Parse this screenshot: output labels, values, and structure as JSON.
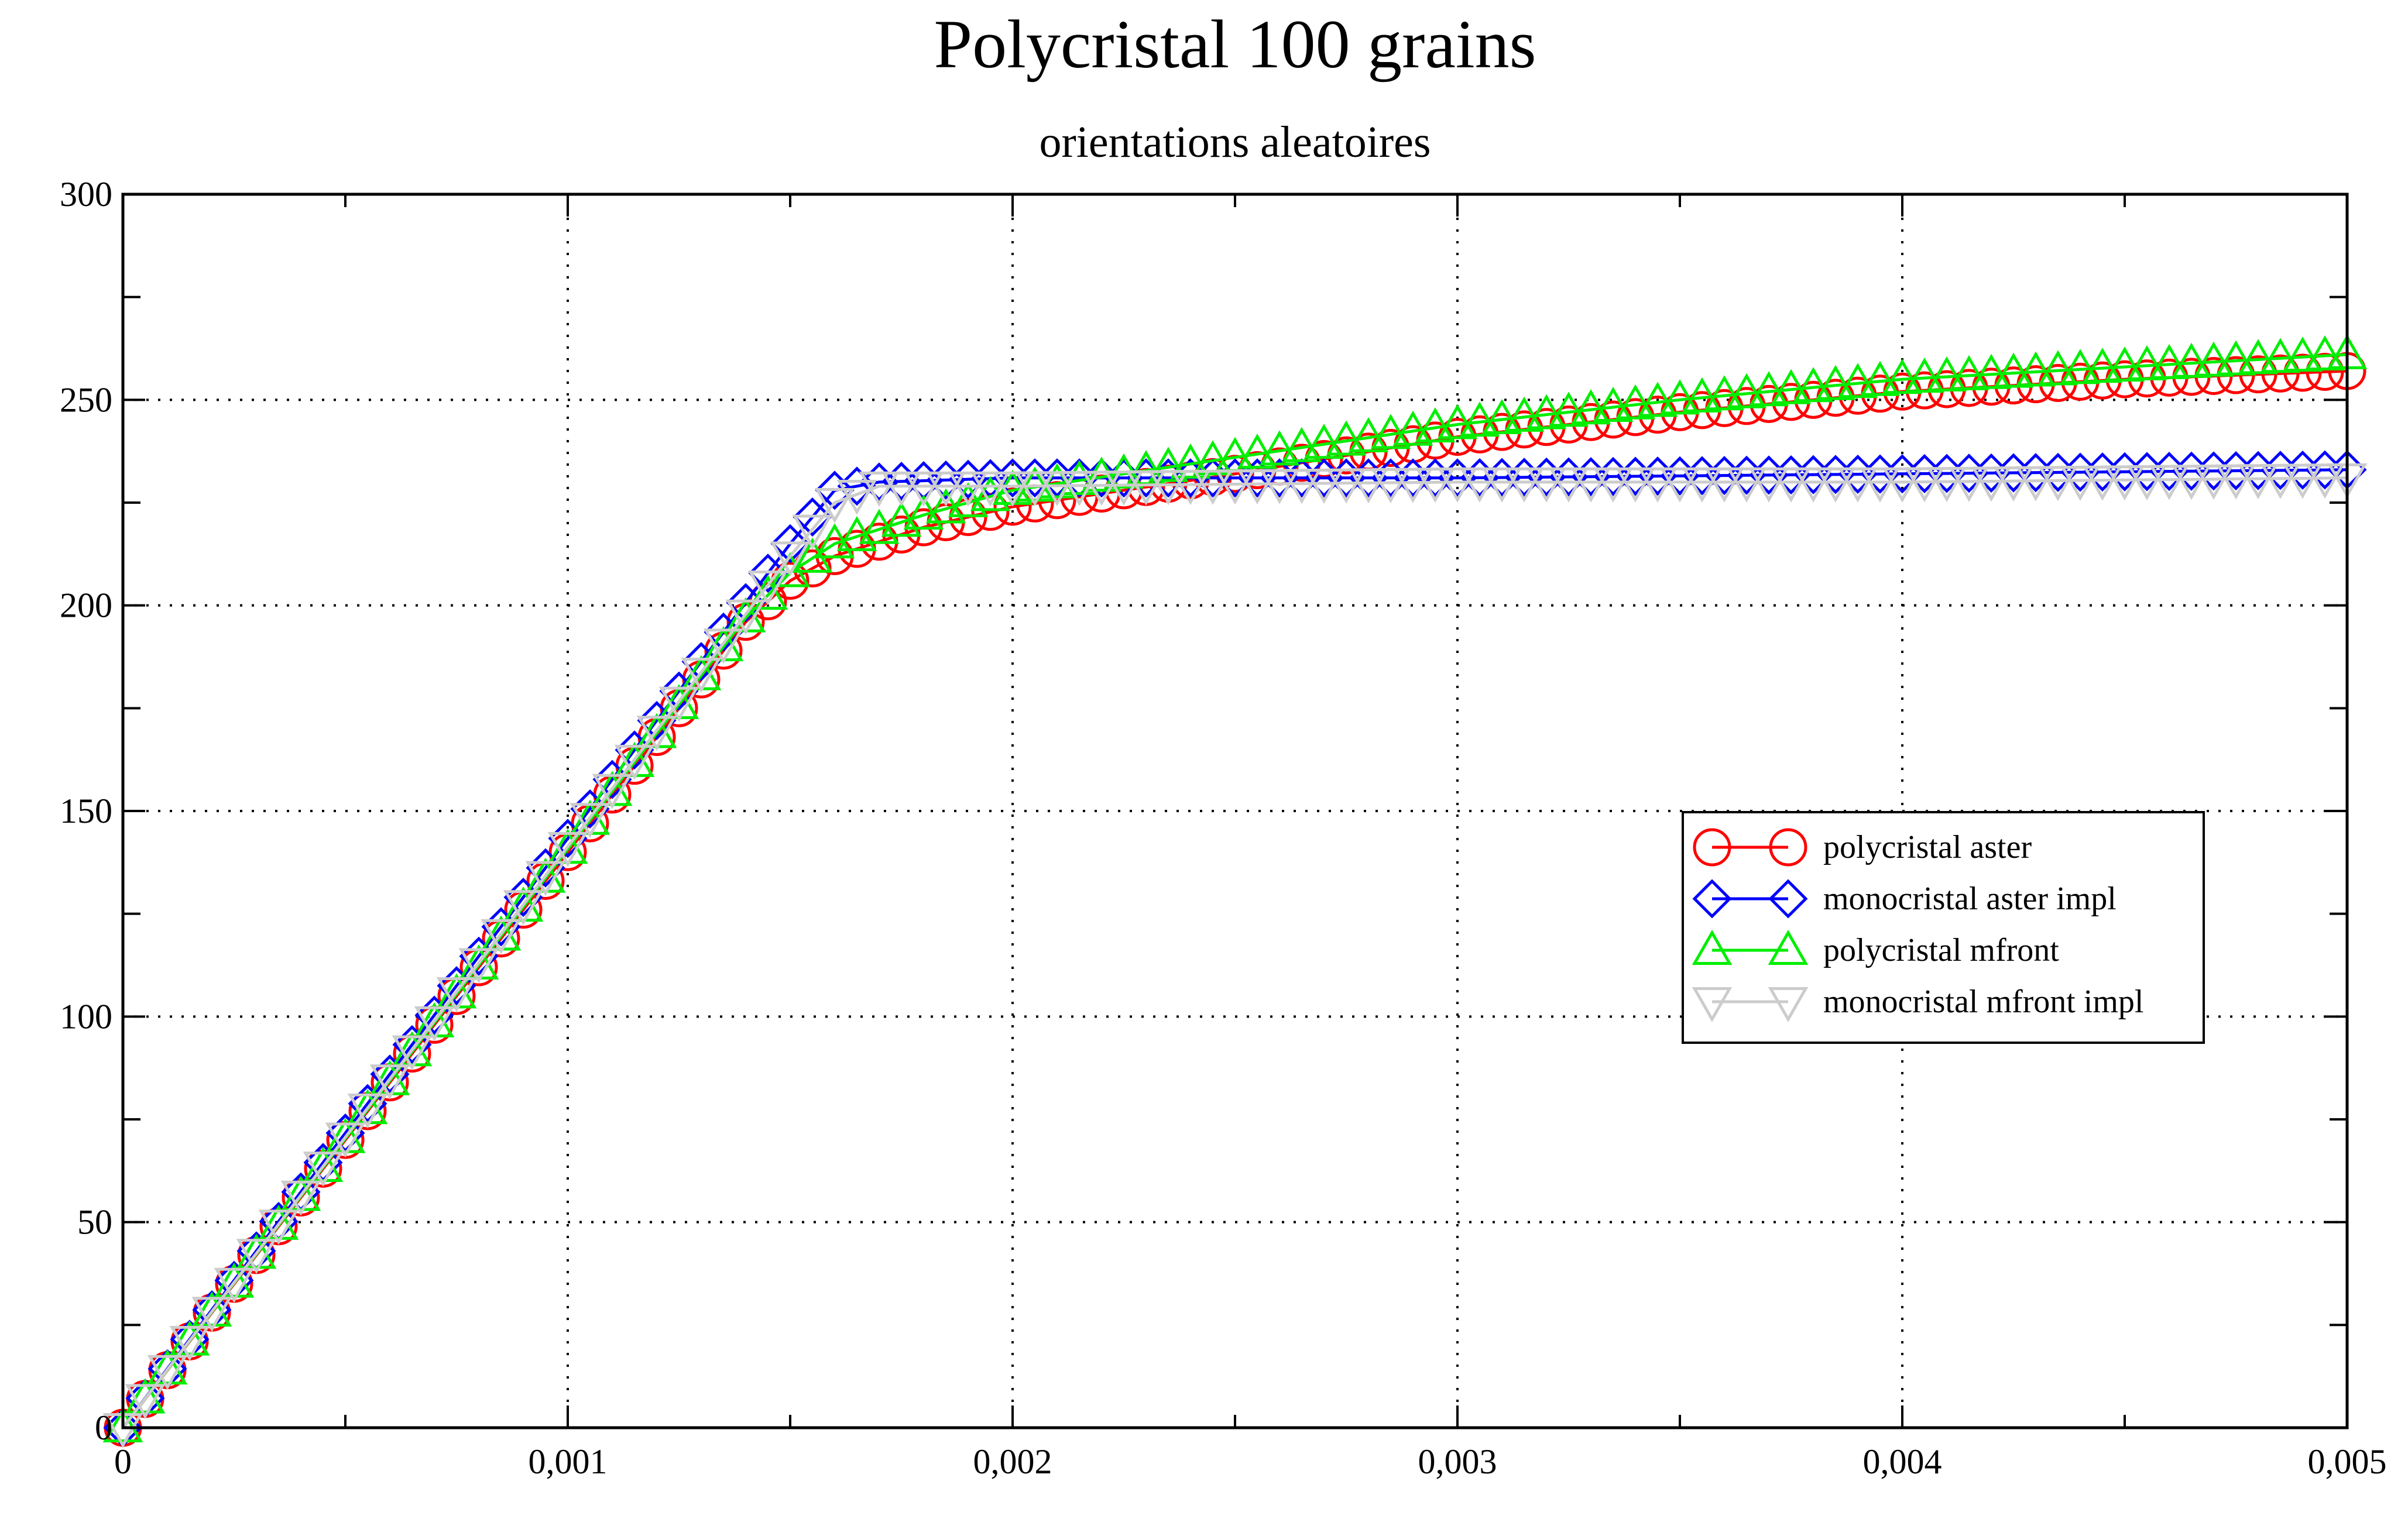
{
  "chart_data": {
    "type": "line",
    "title": "Polycristal 100 grains",
    "subtitle": "orientations aleatoires",
    "xlabel": "",
    "ylabel": "",
    "xlim": [
      0,
      0.005
    ],
    "ylim": [
      0,
      300
    ],
    "x_ticks": [
      0,
      0.001,
      0.002,
      0.003,
      0.004,
      0.005
    ],
    "x_tick_labels": [
      "0",
      "0,001",
      "0,002",
      "0,003",
      "0,004",
      "0,005"
    ],
    "y_ticks": [
      0,
      50,
      100,
      150,
      200,
      250,
      300
    ],
    "y_tick_labels": [
      "0",
      "50",
      "100",
      "150",
      "200",
      "250",
      "300"
    ],
    "grid": true,
    "legend_position": "right",
    "series": [
      {
        "name": "polycristal aster",
        "color": "#ff0000",
        "marker": "circle",
        "points": [
          [
            0,
            0
          ],
          [
            0.0014,
            196
          ],
          [
            0.0015,
            206
          ],
          [
            0.0016,
            212
          ],
          [
            0.0018,
            219
          ],
          [
            0.002,
            224
          ],
          [
            0.0025,
            232
          ],
          [
            0.003,
            241
          ],
          [
            0.0035,
            247
          ],
          [
            0.004,
            252
          ],
          [
            0.0045,
            255
          ],
          [
            0.005,
            257
          ]
        ]
      },
      {
        "name": "monocristal aster impl",
        "color": "#0000ff",
        "marker": "diamond",
        "points": [
          [
            0,
            0
          ],
          [
            0.0015,
            215
          ],
          [
            0.0016,
            228
          ],
          [
            0.0017,
            230
          ],
          [
            0.002,
            231
          ],
          [
            0.003,
            231
          ],
          [
            0.004,
            232
          ],
          [
            0.005,
            233
          ]
        ]
      },
      {
        "name": "polycristal mfront",
        "color": "#00ee00",
        "marker": "triangle-up",
        "points": [
          [
            0,
            0
          ],
          [
            0.0014,
            197
          ],
          [
            0.0015,
            208
          ],
          [
            0.0016,
            215
          ],
          [
            0.0018,
            222
          ],
          [
            0.002,
            228
          ],
          [
            0.0025,
            236
          ],
          [
            0.003,
            244
          ],
          [
            0.0035,
            250
          ],
          [
            0.004,
            255
          ],
          [
            0.0045,
            258
          ],
          [
            0.005,
            261
          ]
        ]
      },
      {
        "name": "monocristal mfront impl",
        "color": "#cccccc",
        "marker": "triangle-down",
        "points": [
          [
            0,
            0
          ],
          [
            0.0015,
            212
          ],
          [
            0.0016,
            225
          ],
          [
            0.0017,
            229
          ],
          [
            0.002,
            229
          ],
          [
            0.003,
            230
          ],
          [
            0.004,
            230
          ],
          [
            0.005,
            231
          ]
        ]
      }
    ]
  }
}
